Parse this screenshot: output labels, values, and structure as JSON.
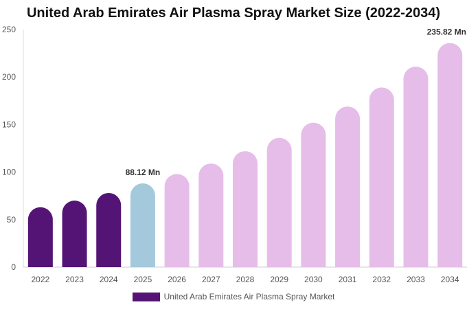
{
  "chart_data": {
    "type": "bar",
    "title": "United Arab Emirates Air Plasma Spray Market Size (2022-2034)",
    "xlabel": "",
    "ylabel": "",
    "ylim": [
      0,
      250
    ],
    "yticks": [
      0,
      50,
      100,
      150,
      200,
      250
    ],
    "grid": false,
    "legend_position": "bottom",
    "categories": [
      "2022",
      "2023",
      "2024",
      "2025",
      "2026",
      "2027",
      "2028",
      "2029",
      "2030",
      "2031",
      "2032",
      "2033",
      "2034"
    ],
    "series": [
      {
        "name": "United Arab Emirates Air Plasma Spray Market",
        "values": [
          63,
          70,
          78,
          88.12,
          98,
          109,
          122,
          136,
          152,
          169,
          189,
          211,
          235.82
        ],
        "colors": [
          "#541475",
          "#541475",
          "#541475",
          "#a4c9dd",
          "#e6bde9",
          "#e6bde9",
          "#e6bde9",
          "#e6bde9",
          "#e6bde9",
          "#e6bde9",
          "#e6bde9",
          "#e6bde9",
          "#e6bde9"
        ]
      }
    ],
    "data_labels": [
      {
        "index": 3,
        "text": "88.12 Mn"
      },
      {
        "index": 12,
        "text": "235.82 Mn"
      }
    ],
    "legend_color": "#541475"
  }
}
